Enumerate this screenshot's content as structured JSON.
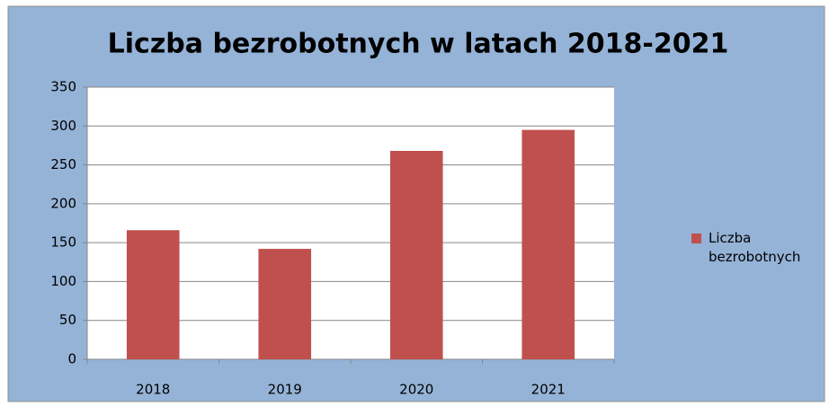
{
  "chart_data": {
    "type": "bar",
    "title": "Liczba bezrobotnych w latach 2018-2021",
    "categories": [
      "2018",
      "2019",
      "2020",
      "2021"
    ],
    "series": [
      {
        "name": "Liczba bezrobotnych",
        "color": "#c0504d",
        "values": [
          166,
          142,
          268,
          295
        ]
      }
    ],
    "ylim": [
      0,
      350
    ],
    "yticks": [
      0,
      50,
      100,
      150,
      200,
      250,
      300,
      350
    ],
    "grid": true,
    "legend": "right"
  }
}
